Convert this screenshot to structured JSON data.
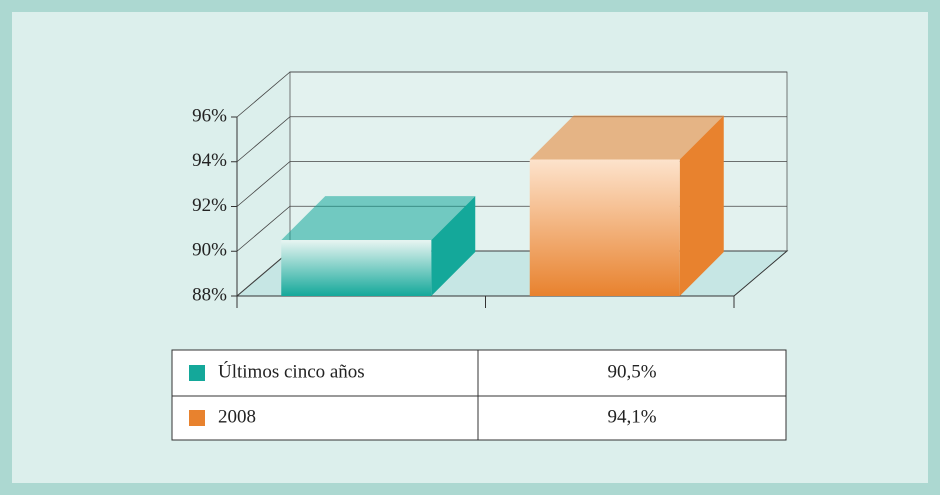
{
  "chart_data": {
    "type": "bar",
    "categories": [
      null
    ],
    "series": [
      {
        "name": "Últimos cinco años",
        "color": "#14a89a",
        "values": [
          90.5
        ],
        "value_labels": [
          "90,5%"
        ]
      },
      {
        "name": "2008",
        "color": "#e8822e",
        "values": [
          94.1
        ],
        "value_labels": [
          "94,1%"
        ]
      }
    ],
    "ylim": [
      88,
      96
    ],
    "yticks": [
      {
        "value": 88,
        "label": "88%"
      },
      {
        "value": 90,
        "label": "90%"
      },
      {
        "value": 92,
        "label": "92%"
      },
      {
        "value": 94,
        "label": "94%"
      },
      {
        "value": 96,
        "label": "96%"
      }
    ],
    "grid": true
  }
}
